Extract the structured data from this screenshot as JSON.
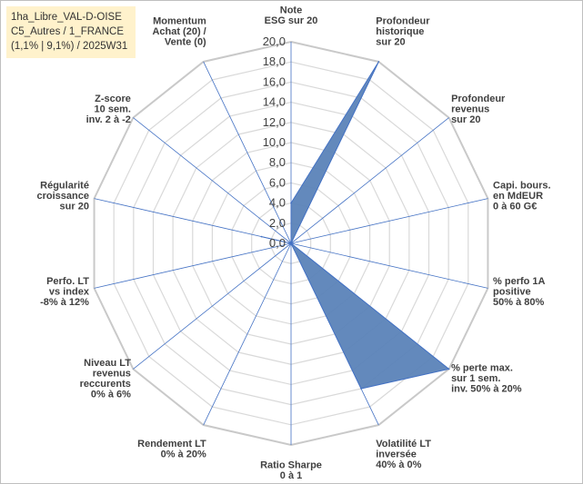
{
  "title_lines": [
    "1ha_Libre_VAL-D-OISE",
    "C5_Autres / 1_FRANCE",
    "(1,1% | 9,1%) / 2025W31"
  ],
  "colors": {
    "series_fill": "#5b83b8",
    "series_stroke": "#4472c4",
    "grid": "#d9d9d9",
    "spoke": "#4472c4",
    "title_bg": "#fff2cc"
  },
  "chart_data": {
    "type": "radar",
    "title": "",
    "axes": [
      [
        "Note",
        "ESG sur 20"
      ],
      [
        "Profondeur",
        "historique",
        "sur 20"
      ],
      [
        "Profondeur",
        "revenus",
        "sur 20"
      ],
      [
        "Capi. bours.",
        "en MdEUR",
        "0 à 60 G€"
      ],
      [
        "% perfo 1A",
        "positive",
        "50% à 80%"
      ],
      [
        "% perte max.",
        "sur 1 sem.",
        "inv. 50% à 20%"
      ],
      [
        "Volatilité LT",
        "inversée",
        "40% à 0%"
      ],
      [
        "Ratio Sharpe",
        "0 à 1"
      ],
      [
        "Rendement LT",
        "0% à 20%"
      ],
      [
        "Niveau LT",
        "revenus",
        "reccurents",
        "0% à 6%"
      ],
      [
        "Perfo. LT",
        "vs index",
        "-8% à 12%"
      ],
      [
        "Régularité",
        "croissance",
        "sur 20"
      ],
      [
        "Z-score",
        "10 sem.",
        "inv. 2 à -2"
      ],
      [
        "Momentum",
        "Achat (20) /",
        "Vente (0)"
      ]
    ],
    "range": [
      0,
      20
    ],
    "tick_step": 2,
    "ticks": [
      "0,0",
      "2,0",
      "4,0",
      "6,0",
      "8,0",
      "10,0",
      "12,0",
      "14,0",
      "16,0",
      "18,0",
      "20,0"
    ],
    "series": [
      {
        "values": [
          4.0,
          20.0,
          0.0,
          0.0,
          0.0,
          20.0,
          16.0,
          0.0,
          0.0,
          0.0,
          0.0,
          3.0,
          0.0,
          0.0
        ]
      }
    ],
    "grid": true,
    "legend": "none"
  }
}
